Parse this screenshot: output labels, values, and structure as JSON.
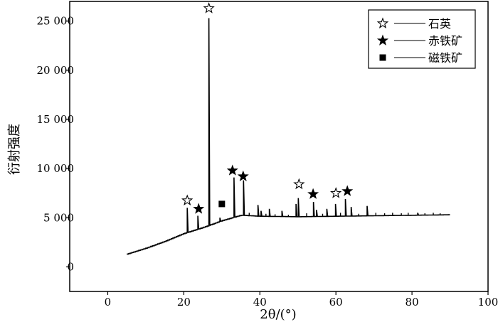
{
  "chart_data": {
    "type": "line",
    "title": "",
    "xlabel": "2θ/(°)",
    "ylabel": "衍射强度",
    "xlim": [
      -10,
      100
    ],
    "ylim": [
      -2500,
      27000
    ],
    "x_ticks": [
      0,
      20,
      40,
      60,
      80,
      100
    ],
    "x_tick_labels": [
      "0",
      "20",
      "40",
      "60",
      "80",
      "100"
    ],
    "y_ticks": [
      0,
      5000,
      10000,
      15000,
      20000,
      25000
    ],
    "y_tick_labels": [
      "0",
      "5 000",
      "10 000",
      "15 000",
      "20 000",
      "25 000"
    ],
    "grid": false,
    "legend_position": "top-right",
    "legend": [
      {
        "marker": "star-open",
        "label": "石英"
      },
      {
        "marker": "star-filled",
        "label": "赤铁矿"
      },
      {
        "marker": "square-filled",
        "label": "磁铁矿"
      }
    ],
    "series": [
      {
        "color": "#000000",
        "baseline": [
          [
            5,
            1300
          ],
          [
            10,
            1900
          ],
          [
            15,
            2600
          ],
          [
            20,
            3400
          ],
          [
            25,
            4000
          ],
          [
            30,
            4700
          ],
          [
            35,
            5250
          ],
          [
            40,
            5150
          ],
          [
            50,
            5100
          ],
          [
            60,
            5150
          ],
          [
            70,
            5200
          ],
          [
            80,
            5250
          ],
          [
            90,
            5300
          ]
        ],
        "peaks": [
          [
            20.9,
            6000
          ],
          [
            23.7,
            5200
          ],
          [
            26.6,
            25300
          ],
          [
            29.5,
            5000
          ],
          [
            33.2,
            9100
          ],
          [
            35.7,
            8800
          ],
          [
            39.5,
            6300
          ],
          [
            40.3,
            5700
          ],
          [
            42.5,
            5900
          ],
          [
            45.8,
            5700
          ],
          [
            49.5,
            6400
          ],
          [
            50.1,
            7000
          ],
          [
            54.1,
            6600
          ],
          [
            54.9,
            5800
          ],
          [
            57.6,
            5900
          ],
          [
            59.9,
            6400
          ],
          [
            62.5,
            6900
          ],
          [
            64.0,
            6100
          ],
          [
            68.2,
            6200
          ],
          [
            81.5,
            5500
          ]
        ]
      }
    ],
    "annotations": [
      {
        "marker": "star-open",
        "x": 20.9,
        "y": 6750
      },
      {
        "marker": "star-filled",
        "x": 23.9,
        "y": 5900
      },
      {
        "marker": "star-open",
        "x": 26.6,
        "y": 26300
      },
      {
        "marker": "square-filled",
        "x": 30.0,
        "y": 6400
      },
      {
        "marker": "star-filled",
        "x": 32.8,
        "y": 9800
      },
      {
        "marker": "star-filled",
        "x": 35.6,
        "y": 9200
      },
      {
        "marker": "star-open",
        "x": 50.3,
        "y": 8400
      },
      {
        "marker": "star-filled",
        "x": 54.0,
        "y": 7400
      },
      {
        "marker": "star-open",
        "x": 60.0,
        "y": 7500
      },
      {
        "marker": "star-filled",
        "x": 63.0,
        "y": 7700
      }
    ]
  }
}
